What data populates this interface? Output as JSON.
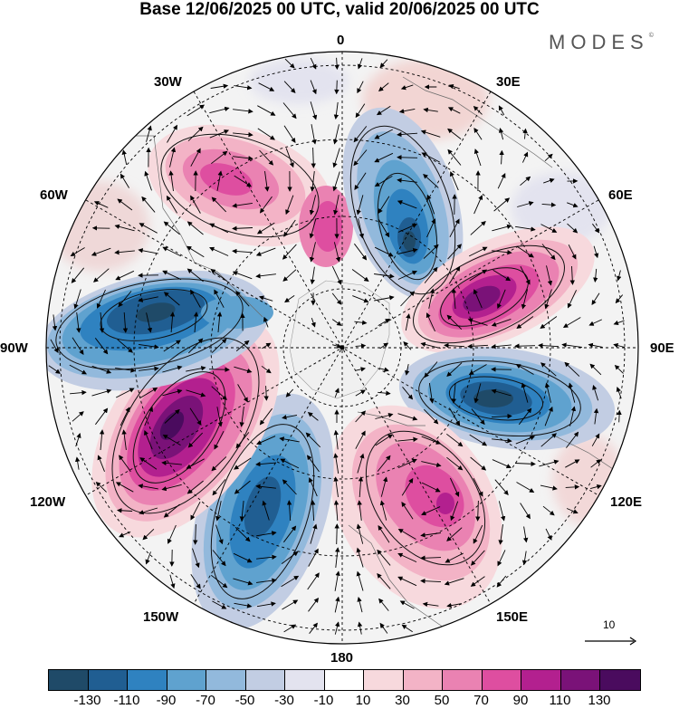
{
  "title": "Base 12/06/2025 00 UTC, valid 20/06/2025 00 UTC",
  "brand": "MODES",
  "brand_mark": "©",
  "longitude_labels": {
    "lon_0": "0",
    "lon_30e": "30E",
    "lon_60e": "60E",
    "lon_90e": "90E",
    "lon_120e": "120E",
    "lon_150e": "150E",
    "lon_180": "180",
    "lon_150w": "150W",
    "lon_120w": "120W",
    "lon_90w": "90W",
    "lon_60w": "60W",
    "lon_30w": "30W"
  },
  "vector_scale": {
    "label": "10"
  },
  "colorbar": {
    "colors": [
      "#1f4a68",
      "#205e92",
      "#2f82c0",
      "#5fa2cf",
      "#92b9dc",
      "#c2cde3",
      "#e3e3ef",
      "#ffffff",
      "#f7d9dd",
      "#f3b3c6",
      "#ea82b2",
      "#de4ea0",
      "#b3208f",
      "#7a1278",
      "#4a0b5e"
    ],
    "tick_labels": [
      "-130",
      "-110",
      "-90",
      "-70",
      "-50",
      "-30",
      "-10",
      "10",
      "30",
      "50",
      "70",
      "90",
      "110",
      "130"
    ]
  }
}
